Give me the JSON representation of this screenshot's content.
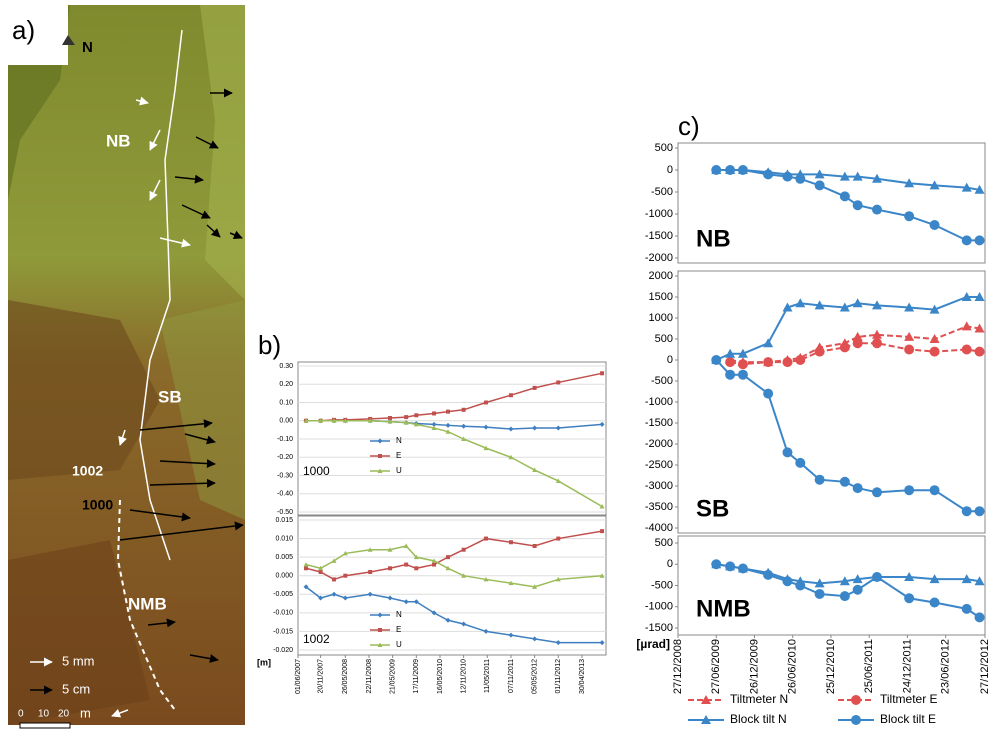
{
  "panel_a": {
    "label": "a)",
    "north": "N",
    "zones": [
      "NB",
      "SB",
      "NMB"
    ],
    "points": [
      "1002",
      "1000"
    ],
    "scale_arrows": [
      "5 cm",
      "5 mm"
    ],
    "scale_bar": [
      "0",
      "10",
      "20",
      "m"
    ]
  },
  "panel_b": {
    "label": "b)"
  },
  "panel_c": {
    "label": "c)"
  },
  "chart_data": [
    {
      "type": "line",
      "annotation": "1000",
      "legend": "center-left",
      "grid": true,
      "x": [
        "01/08/2007",
        "20/11/2007",
        "01/03/2008",
        "26/05/2008",
        "01/12/2008",
        "01/05/2009",
        "01/09/2009",
        "17/11/2009",
        "01/04/2010",
        "16/07/2010",
        "12/11/2010",
        "01/05/2011",
        "07/11/2011",
        "05/05/2012",
        "01/11/2012",
        "30/09/2013"
      ],
      "xlim": [
        "01/06/2007",
        "30/10/2013"
      ],
      "ylim": [
        -0.5,
        0.3
      ],
      "yticks": [
        {
          "value": 0.3,
          "label": "0.30"
        },
        {
          "value": 0.2,
          "label": "0.20"
        },
        {
          "value": 0.1,
          "label": "0.10"
        },
        {
          "value": 0,
          "label": "0.00"
        },
        {
          "value": -0.1,
          "label": "-0.10"
        },
        {
          "value": -0.2,
          "label": "-0.20"
        },
        {
          "value": -0.3,
          "label": "-0.30"
        },
        {
          "value": -0.4,
          "label": "-0.40"
        },
        {
          "value": -0.5,
          "label": "-0.50"
        }
      ],
      "series": [
        {
          "name": "N",
          "color": "#3f7fc0",
          "marker": "diamond",
          "values": [
            0,
            0,
            0,
            0,
            0,
            -0.005,
            -0.01,
            -0.015,
            -0.02,
            -0.025,
            -0.03,
            -0.035,
            -0.045,
            -0.04,
            -0.04,
            -0.02
          ]
        },
        {
          "name": "E",
          "color": "#c0504d",
          "marker": "square",
          "values": [
            0,
            0,
            0.005,
            0.005,
            0.01,
            0.015,
            0.02,
            0.03,
            0.04,
            0.05,
            0.06,
            0.1,
            0.14,
            0.18,
            0.21,
            0.26
          ]
        },
        {
          "name": "U",
          "color": "#9bbb59",
          "marker": "triangle",
          "values": [
            0,
            0,
            0,
            0,
            0,
            -0.005,
            -0.01,
            -0.02,
            -0.04,
            -0.06,
            -0.1,
            -0.15,
            -0.2,
            -0.27,
            -0.33,
            -0.47
          ]
        }
      ]
    },
    {
      "type": "line",
      "annotation": "1002",
      "unit_label": "[m]",
      "legend": "lower-center",
      "grid": true,
      "x": [
        "01/08/2007",
        "20/11/2007",
        "01/03/2008",
        "26/05/2008",
        "01/12/2008",
        "01/05/2009",
        "01/09/2009",
        "17/11/2009",
        "01/04/2010",
        "16/07/2010",
        "12/11/2010",
        "01/05/2011",
        "07/11/2011",
        "05/05/2012",
        "01/11/2012",
        "30/09/2013"
      ],
      "xlim": [
        "01/06/2007",
        "30/10/2013"
      ],
      "xticks": [
        "01/06/2007",
        "20/11/2007",
        "26/05/2008",
        "22/11/2008",
        "21/05/2009",
        "17/11/2009",
        "16/05/2010",
        "12/11/2010",
        "11/05/2011",
        "07/11/2011",
        "05/05/2012",
        "01/11/2012",
        "30/04/2013"
      ],
      "ylim": [
        -0.02,
        0.015
      ],
      "yticks": [
        {
          "value": 0.015,
          "label": "0.015"
        },
        {
          "value": 0.01,
          "label": "0.010"
        },
        {
          "value": 0.005,
          "label": "0.005"
        },
        {
          "value": 0,
          "label": "0.000"
        },
        {
          "value": -0.005,
          "label": "-0.005"
        },
        {
          "value": -0.01,
          "label": "-0.010"
        },
        {
          "value": -0.015,
          "label": "-0.015"
        },
        {
          "value": -0.02,
          "label": "-0.020"
        }
      ],
      "series": [
        {
          "name": "N",
          "color": "#3f7fc0",
          "marker": "diamond",
          "values": [
            -0.003,
            -0.006,
            -0.005,
            -0.006,
            -0.005,
            -0.006,
            -0.007,
            -0.007,
            -0.01,
            -0.012,
            -0.013,
            -0.015,
            -0.016,
            -0.017,
            -0.018,
            -0.018
          ]
        },
        {
          "name": "E",
          "color": "#c0504d",
          "marker": "square",
          "values": [
            0.002,
            0.001,
            -0.001,
            0,
            0.001,
            0.002,
            0.003,
            0.002,
            0.003,
            0.005,
            0.007,
            0.01,
            0.009,
            0.008,
            0.01,
            0.012
          ]
        },
        {
          "name": "U",
          "color": "#9bbb59",
          "marker": "triangle",
          "values": [
            0.003,
            0.002,
            0.004,
            0.006,
            0.007,
            0.007,
            0.008,
            0.005,
            0.004,
            0.002,
            0,
            -0.001,
            -0.002,
            -0.003,
            -0.001,
            0
          ]
        }
      ]
    },
    {
      "type": "line",
      "annotation": "NB",
      "grid": false,
      "x": [
        "27/06/2009",
        "01/09/2009",
        "01/11/2009",
        "01/03/2010",
        "01/06/2010",
        "01/08/2010",
        "01/11/2010",
        "01/03/2011",
        "01/05/2011",
        "01/08/2011",
        "01/01/2012",
        "01/05/2012",
        "01/10/2012",
        "01/12/2012"
      ],
      "xlim": [
        "27/12/2008",
        "27/12/2012"
      ],
      "ylim": [
        -2000,
        500
      ],
      "yticks": [
        500,
        0,
        -500,
        -1000,
        -1500,
        -2000
      ],
      "series": [
        {
          "name": "Block tilt N",
          "color": "#3a86c8",
          "marker": "triangle",
          "values": [
            0,
            0,
            0,
            -50,
            -100,
            -100,
            -100,
            -150,
            -150,
            -200,
            -300,
            -350,
            -400,
            -450
          ]
        },
        {
          "name": "Block tilt E",
          "color": "#3a86c8",
          "marker": "circle",
          "values": [
            0,
            0,
            0,
            -100,
            -150,
            -200,
            -350,
            -600,
            -800,
            -900,
            -1050,
            -1250,
            -1600,
            -1600
          ]
        }
      ]
    },
    {
      "type": "line",
      "annotation": "SB",
      "legend": "below",
      "grid": false,
      "x": [
        "27/06/2009",
        "01/09/2009",
        "01/11/2009",
        "01/03/2010",
        "01/06/2010",
        "01/08/2010",
        "01/11/2010",
        "01/03/2011",
        "01/05/2011",
        "01/08/2011",
        "01/01/2012",
        "01/05/2012",
        "01/10/2012",
        "01/12/2012"
      ],
      "xlim": [
        "27/12/2008",
        "27/12/2012"
      ],
      "ylim": [
        -4000,
        2000
      ],
      "yticks": [
        2000,
        1500,
        1000,
        500,
        0,
        -500,
        -1000,
        -1500,
        -2000,
        -2500,
        -3000,
        -3500,
        -4000
      ],
      "series": [
        {
          "name": "Tiltmeter N",
          "color": "#e05050",
          "marker": "triangle",
          "values": [
            null,
            0,
            -50,
            -50,
            0,
            50,
            300,
            400,
            550,
            600,
            550,
            500,
            800,
            750
          ]
        },
        {
          "name": "Tiltmeter E",
          "color": "#e05050",
          "marker": "circle",
          "values": [
            null,
            -50,
            -100,
            -50,
            -50,
            0,
            200,
            300,
            400,
            400,
            250,
            200,
            250,
            200
          ]
        },
        {
          "name": "Block tilt N",
          "color": "#3a86c8",
          "marker": "triangle",
          "values": [
            0,
            150,
            150,
            400,
            1250,
            1350,
            1300,
            1250,
            1350,
            1300,
            1250,
            1200,
            1500,
            1500
          ]
        },
        {
          "name": "Block tilt E",
          "color": "#3a86c8",
          "marker": "circle",
          "values": [
            0,
            -350,
            -350,
            -800,
            -2200,
            -2450,
            -2850,
            -2900,
            -3050,
            -3150,
            -3100,
            -3100,
            -3600,
            -3600
          ]
        }
      ]
    },
    {
      "type": "line",
      "annotation": "NMB",
      "unit_label": "[µrad]",
      "grid": false,
      "x": [
        "27/06/2009",
        "01/09/2009",
        "01/11/2009",
        "01/03/2010",
        "01/06/2010",
        "01/08/2010",
        "01/11/2010",
        "01/03/2011",
        "01/05/2011",
        "01/08/2011",
        "01/01/2012",
        "01/05/2012",
        "01/10/2012",
        "01/12/2012"
      ],
      "xlim": [
        "27/12/2008",
        "27/12/2012"
      ],
      "xticks": [
        "27/12/2008",
        "27/06/2009",
        "26/12/2009",
        "26/06/2010",
        "25/12/2010",
        "25/06/2011",
        "24/12/2011",
        "23/06/2012",
        "27/12/2012"
      ],
      "ylim": [
        -1500,
        500
      ],
      "yticks": [
        500,
        0,
        -500,
        -1000,
        -1500
      ],
      "series": [
        {
          "name": "Block tilt N",
          "color": "#3a86c8",
          "marker": "triangle",
          "values": [
            0,
            -50,
            -100,
            -200,
            -350,
            -400,
            -450,
            -400,
            -350,
            -300,
            -300,
            -350,
            -350,
            -400
          ]
        },
        {
          "name": "Block tilt E",
          "color": "#3a86c8",
          "marker": "circle",
          "values": [
            0,
            -50,
            -100,
            -250,
            -400,
            -500,
            -700,
            -750,
            -600,
            -300,
            -800,
            -900,
            -1050,
            -1250
          ]
        }
      ]
    }
  ]
}
